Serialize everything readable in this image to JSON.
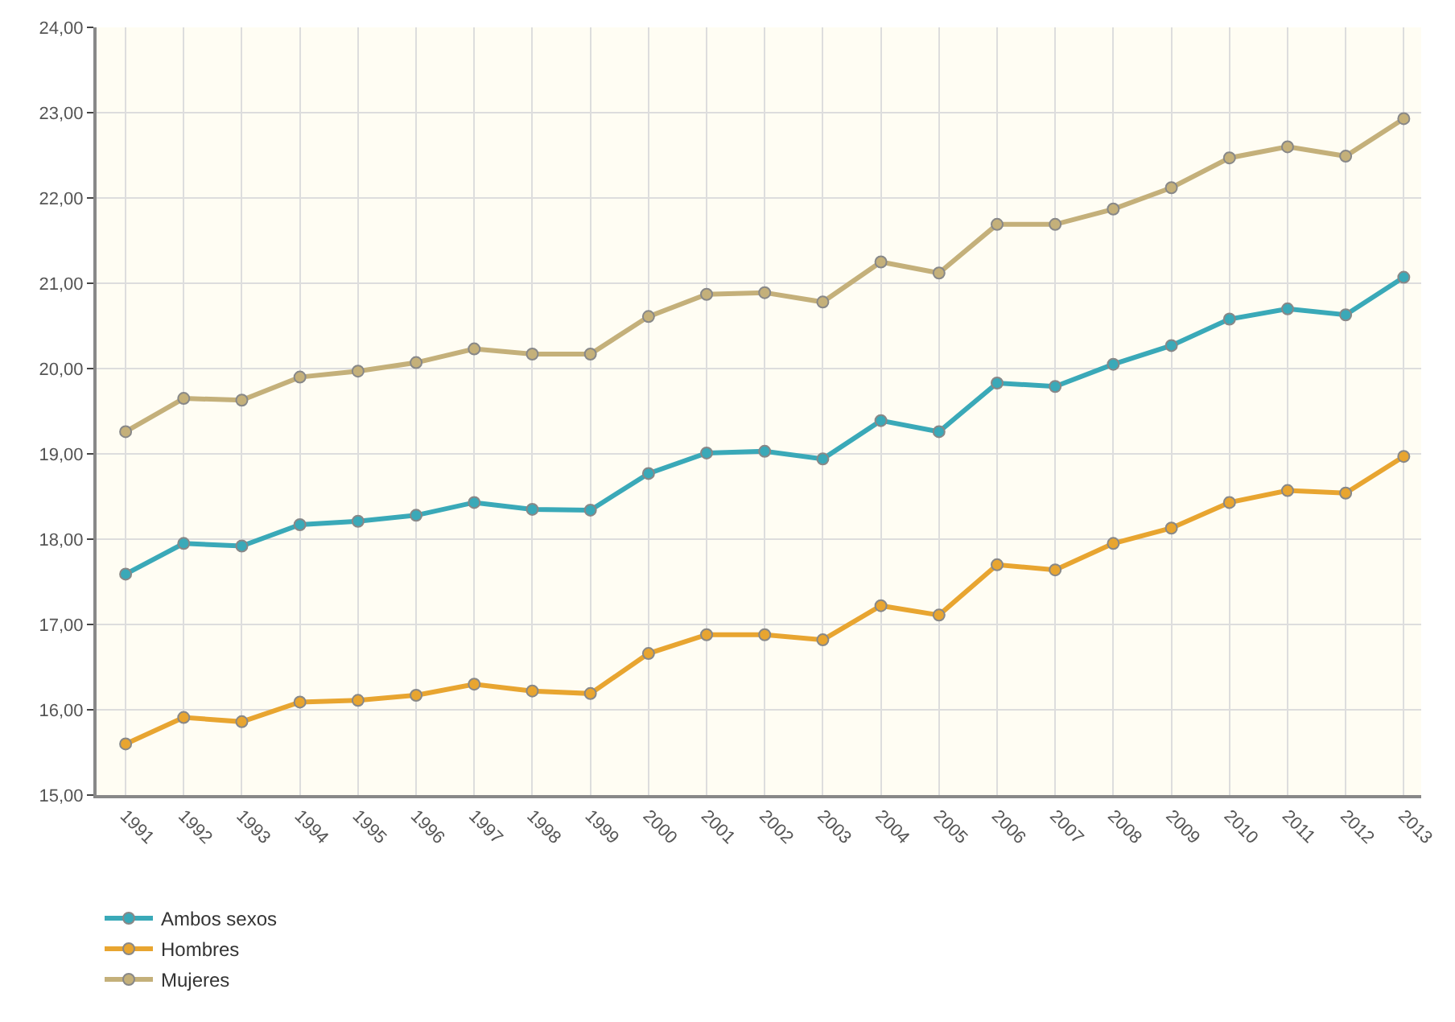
{
  "chart_data": {
    "type": "line",
    "categories": [
      "1991",
      "1992",
      "1993",
      "1994",
      "1995",
      "1996",
      "1997",
      "1998",
      "1999",
      "2000",
      "2001",
      "2002",
      "2003",
      "2004",
      "2005",
      "2006",
      "2007",
      "2008",
      "2009",
      "2010",
      "2011",
      "2012",
      "2013"
    ],
    "series": [
      {
        "name": "Ambos sexos",
        "color": "#3aa9b8",
        "values": [
          17.59,
          17.95,
          17.92,
          18.17,
          18.21,
          18.28,
          18.43,
          18.35,
          18.34,
          18.77,
          19.01,
          19.03,
          18.94,
          19.39,
          19.26,
          19.83,
          19.79,
          20.05,
          20.27,
          20.58,
          20.7,
          20.63,
          21.07
        ]
      },
      {
        "name": "Hombres",
        "color": "#e8a530",
        "values": [
          15.6,
          15.91,
          15.86,
          16.09,
          16.11,
          16.17,
          16.3,
          16.22,
          16.19,
          16.66,
          16.88,
          16.88,
          16.82,
          17.22,
          17.11,
          17.7,
          17.64,
          17.95,
          18.13,
          18.43,
          18.57,
          18.54,
          18.97
        ]
      },
      {
        "name": "Mujeres",
        "color": "#c4b07a",
        "values": [
          19.26,
          19.65,
          19.63,
          19.9,
          19.97,
          20.07,
          20.23,
          20.17,
          20.17,
          20.61,
          20.87,
          20.89,
          20.78,
          21.25,
          21.12,
          21.69,
          21.69,
          21.87,
          22.12,
          22.47,
          22.6,
          22.49,
          22.93
        ]
      }
    ],
    "ylim": [
      15,
      24
    ],
    "yticks": [
      {
        "value": 15,
        "label": "15,00"
      },
      {
        "value": 16,
        "label": "16,00"
      },
      {
        "value": 17,
        "label": "17,00"
      },
      {
        "value": 18,
        "label": "18,00"
      },
      {
        "value": 19,
        "label": "19,00"
      },
      {
        "value": 20,
        "label": "20,00"
      },
      {
        "value": 21,
        "label": "21,00"
      },
      {
        "value": 22,
        "label": "22,00"
      },
      {
        "value": 23,
        "label": "23,00"
      },
      {
        "value": 24,
        "label": "24,00"
      }
    ],
    "grid": true,
    "legend": "bottom left",
    "marker": "circle",
    "line_style": "solid"
  }
}
